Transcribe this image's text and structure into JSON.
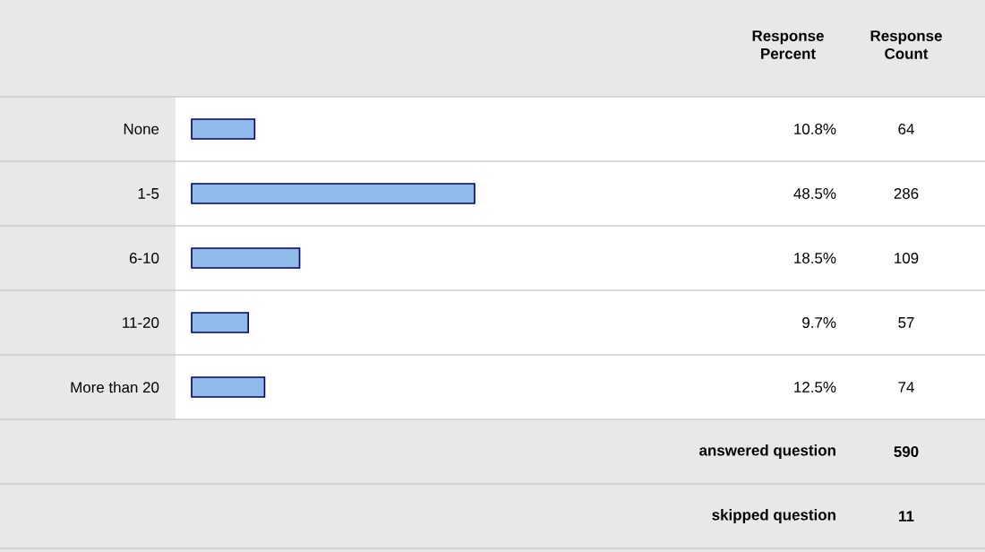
{
  "chart_data": {
    "type": "bar",
    "orientation": "horizontal",
    "color": "#8fbbea",
    "categories": [
      "None",
      "1-5",
      "6-10",
      "11-20",
      "More than 20"
    ],
    "values": [
      10.8,
      48.5,
      18.5,
      9.7,
      12.5
    ],
    "value_labels": [
      "10.8%",
      "48.5%",
      "18.5%",
      "9.7%",
      "12.5%"
    ],
    "annotations": [
      "Response Percent",
      "Response Count",
      "64",
      "286",
      "109",
      "57",
      "74",
      "answered question",
      "590",
      "skipped question",
      "11"
    ]
  }
}
